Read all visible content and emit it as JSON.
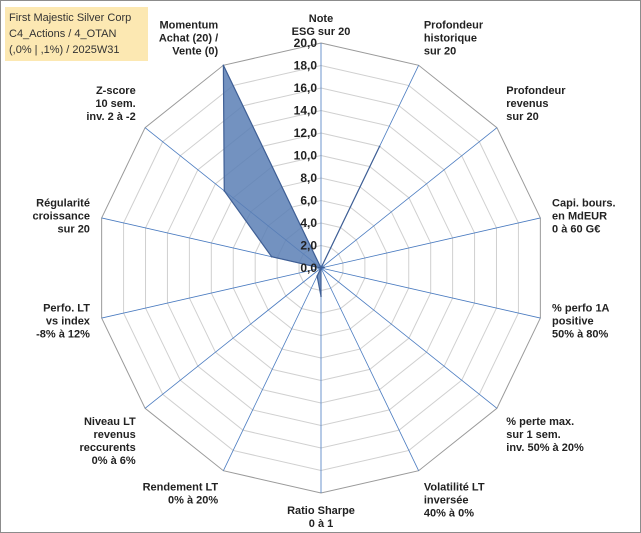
{
  "title_box": {
    "line1": "First Majestic Silver Corp",
    "line2": "C4_Actions / 4_OTAN",
    "line3": "(,0% | ,1%) / 2025W31"
  },
  "colors": {
    "title_bg": "#fce8b2",
    "series_fill": "#5b7fb5",
    "series_stroke": "#3f5f95",
    "spoke": "#4a7bc0",
    "grid": "#d0d0d0"
  },
  "chart_data": {
    "type": "radar",
    "rmin": 0,
    "rmax": 20,
    "tick_labels": [
      "0,0",
      "2,0",
      "4,0",
      "6,0",
      "8,0",
      "10,0",
      "12,0",
      "14,0",
      "16,0",
      "18,0",
      "20,0"
    ],
    "axes": [
      {
        "label": [
          "Note",
          "ESG sur 20"
        ],
        "value": 0
      },
      {
        "label": [
          "Profondeur",
          "historique",
          "sur 20"
        ],
        "value": 12
      },
      {
        "label": [
          "Profondeur",
          "revenus",
          "sur 20"
        ],
        "value": 0
      },
      {
        "label": [
          "Capi. bours.",
          "en MdEUR",
          "0 à 60 G€"
        ],
        "value": 0.3
      },
      {
        "label": [
          "% perfo 1A",
          "positive",
          "50% à 80%"
        ],
        "value": 0
      },
      {
        "label": [
          "% perte max.",
          "sur 1 sem.",
          "inv. 50% à 20%"
        ],
        "value": 0
      },
      {
        "label": [
          "Volatilité LT",
          "inversée",
          "40% à 0%"
        ],
        "value": 0
      },
      {
        "label": [
          "Ratio Sharpe",
          "0 à 1"
        ],
        "value": 2.5
      },
      {
        "label": [
          "Rendement LT",
          "0% à 20%"
        ],
        "value": 0.8
      },
      {
        "label": [
          "Niveau LT",
          "revenus",
          "reccurents",
          "0% à 6%"
        ],
        "value": 0
      },
      {
        "label": [
          "Perfo. LT",
          "vs index",
          "-8% à 12%"
        ],
        "value": 0
      },
      {
        "label": [
          "Régularité",
          "croissance",
          "sur 20"
        ],
        "value": 4.5
      },
      {
        "label": [
          "Z-score",
          "10 sem.",
          "inv. 2 à -2"
        ],
        "value": 11
      },
      {
        "label": [
          "Momentum",
          "Achat (20) /",
          "Vente (0)"
        ],
        "value": 20
      }
    ]
  }
}
